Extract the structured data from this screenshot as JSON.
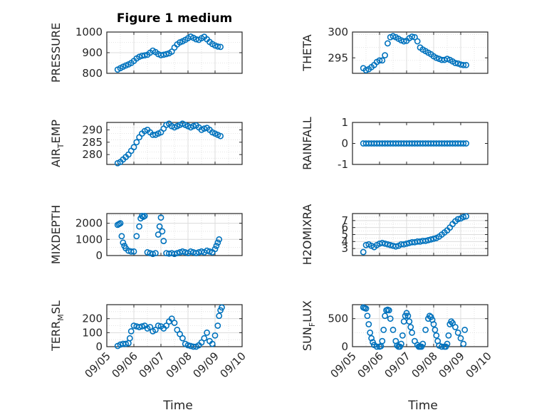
{
  "figure": {
    "title": "Figure 1 medium",
    "xlabel": "Time"
  },
  "colors": {
    "marker": "#0072bd",
    "axis": "#262626",
    "grid": "#dcdcdc"
  },
  "chart_data": [
    {
      "type": "scatter",
      "ylabel": "PRESSURE",
      "ylabel_sub": "",
      "ylabel_rest": "",
      "title": "Figure 1 medium",
      "ylim": [
        800,
        1000
      ],
      "yticks": [
        800,
        900,
        1000
      ],
      "ytick_labels": [
        "800",
        "900",
        "1000"
      ],
      "grid": true,
      "show_xticks": false,
      "x": [
        5.4,
        5.5,
        5.6,
        5.7,
        5.8,
        5.9,
        6.0,
        6.1,
        6.2,
        6.3,
        6.4,
        6.5,
        6.6,
        6.7,
        6.8,
        6.9,
        7.0,
        7.1,
        7.2,
        7.3,
        7.4,
        7.5,
        7.6,
        7.7,
        7.8,
        7.9,
        8.0,
        8.1,
        8.2,
        8.3,
        8.4,
        8.5,
        8.6,
        8.7,
        8.8,
        8.9,
        9.0,
        9.1,
        9.2
      ],
      "y": [
        818,
        825,
        832,
        838,
        843,
        850,
        860,
        872,
        880,
        885,
        887,
        890,
        900,
        910,
        903,
        893,
        888,
        890,
        893,
        897,
        905,
        925,
        940,
        950,
        955,
        962,
        970,
        978,
        972,
        965,
        962,
        970,
        977,
        965,
        952,
        942,
        935,
        930,
        928
      ]
    },
    {
      "type": "scatter",
      "ylabel": "THETA",
      "ylabel_sub": "",
      "ylabel_rest": "",
      "title": "",
      "ylim": [
        292,
        300
      ],
      "yticks": [
        295,
        300
      ],
      "ytick_labels": [
        "295",
        "300"
      ],
      "grid": true,
      "show_xticks": false,
      "x": [
        5.4,
        5.5,
        5.6,
        5.7,
        5.8,
        5.9,
        6.0,
        6.1,
        6.2,
        6.3,
        6.4,
        6.5,
        6.6,
        6.7,
        6.8,
        6.9,
        7.0,
        7.1,
        7.2,
        7.3,
        7.4,
        7.5,
        7.6,
        7.7,
        7.8,
        7.9,
        8.0,
        8.1,
        8.2,
        8.3,
        8.4,
        8.5,
        8.6,
        8.7,
        8.8,
        8.9,
        9.0,
        9.1,
        9.2
      ],
      "y": [
        293.0,
        292.6,
        292.8,
        293.2,
        293.6,
        294.2,
        294.5,
        294.5,
        295.5,
        297.8,
        299.0,
        299.2,
        299.0,
        298.7,
        298.4,
        298.2,
        298.3,
        298.8,
        299.1,
        299.0,
        298.2,
        297.0,
        296.6,
        296.3,
        296.0,
        295.7,
        295.3,
        295.0,
        294.8,
        294.6,
        294.6,
        294.8,
        294.6,
        294.3,
        294.0,
        293.9,
        293.7,
        293.6,
        293.6
      ]
    },
    {
      "type": "scatter",
      "ylabel": "AIR",
      "ylabel_sub": "T",
      "ylabel_rest": "EMP",
      "title": "",
      "ylim": [
        276,
        293
      ],
      "yticks": [
        280,
        285,
        290
      ],
      "ytick_labels": [
        "280",
        "285",
        "290"
      ],
      "grid": true,
      "show_xticks": false,
      "x": [
        5.4,
        5.5,
        5.6,
        5.7,
        5.8,
        5.9,
        6.0,
        6.1,
        6.2,
        6.3,
        6.4,
        6.5,
        6.6,
        6.7,
        6.8,
        6.9,
        7.0,
        7.1,
        7.2,
        7.3,
        7.4,
        7.5,
        7.6,
        7.7,
        7.8,
        7.9,
        8.0,
        8.1,
        8.2,
        8.3,
        8.4,
        8.5,
        8.6,
        8.7,
        8.8,
        8.9,
        9.0,
        9.1,
        9.2
      ],
      "y": [
        276.5,
        277.0,
        278.0,
        279.0,
        280.0,
        281.5,
        283.0,
        285.0,
        287.0,
        288.5,
        289.5,
        290.0,
        289.0,
        288.0,
        288.0,
        288.5,
        289.0,
        290.5,
        292.0,
        292.5,
        291.5,
        291.0,
        291.5,
        292.0,
        292.5,
        292.0,
        291.5,
        291.0,
        291.5,
        291.8,
        291.0,
        290.0,
        290.5,
        290.8,
        290.0,
        289.0,
        288.5,
        288.0,
        287.5
      ]
    },
    {
      "type": "scatter",
      "ylabel": "RAINFALL",
      "ylabel_sub": "",
      "ylabel_rest": "",
      "title": "",
      "ylim": [
        -1,
        1
      ],
      "yticks": [
        -1,
        0,
        1
      ],
      "ytick_labels": [
        "-1",
        "0",
        "1"
      ],
      "grid": false,
      "show_xticks": false,
      "x": [
        5.4,
        5.5,
        5.6,
        5.7,
        5.8,
        5.9,
        6.0,
        6.1,
        6.2,
        6.3,
        6.4,
        6.5,
        6.6,
        6.7,
        6.8,
        6.9,
        7.0,
        7.1,
        7.2,
        7.3,
        7.4,
        7.5,
        7.6,
        7.7,
        7.8,
        7.9,
        8.0,
        8.1,
        8.2,
        8.3,
        8.4,
        8.5,
        8.6,
        8.7,
        8.8,
        8.9,
        9.0,
        9.1,
        9.2
      ],
      "y": [
        0,
        0,
        0,
        0,
        0,
        0,
        0,
        0,
        0,
        0,
        0,
        0,
        0,
        0,
        0,
        0,
        0,
        0,
        0,
        0,
        0,
        0,
        0,
        0,
        0,
        0,
        0,
        0,
        0,
        0,
        0,
        0,
        0,
        0,
        0,
        0,
        0,
        0,
        0
      ]
    },
    {
      "type": "scatter",
      "ylabel": "MIXDEPTH",
      "ylabel_sub": "",
      "ylabel_rest": "",
      "title": "",
      "ylim": [
        0,
        2600
      ],
      "yticks": [
        0,
        1000,
        2000
      ],
      "ytick_labels": [
        "0",
        "1000",
        "2000"
      ],
      "grid": true,
      "show_xticks": false,
      "x": [
        5.4,
        5.45,
        5.5,
        5.55,
        5.6,
        5.65,
        5.7,
        5.8,
        5.9,
        6.0,
        6.1,
        6.2,
        6.25,
        6.3,
        6.35,
        6.4,
        6.5,
        6.6,
        6.7,
        6.8,
        6.9,
        6.95,
        7.0,
        7.05,
        7.1,
        7.2,
        7.3,
        7.4,
        7.5,
        7.6,
        7.7,
        7.8,
        7.9,
        8.0,
        8.1,
        8.2,
        8.3,
        8.4,
        8.5,
        8.6,
        8.7,
        8.8,
        8.9,
        9.0,
        9.05,
        9.1,
        9.15
      ],
      "y": [
        1900,
        1950,
        2000,
        1200,
        800,
        600,
        450,
        300,
        250,
        250,
        1200,
        1800,
        2300,
        2450,
        2400,
        2450,
        200,
        150,
        100,
        150,
        1300,
        1800,
        2350,
        1500,
        900,
        150,
        120,
        150,
        100,
        150,
        200,
        250,
        200,
        150,
        250,
        200,
        150,
        200,
        250,
        200,
        300,
        250,
        200,
        400,
        600,
        800,
        1000
      ]
    },
    {
      "type": "scatter",
      "ylabel": "H2OMIXRA",
      "ylabel_sub": "",
      "ylabel_rest": "",
      "title": "",
      "ylim": [
        2,
        8
      ],
      "yticks": [
        3,
        4,
        5,
        6,
        7
      ],
      "ytick_labels": [
        "3",
        "4",
        "5",
        "6",
        "7"
      ],
      "grid": true,
      "show_xticks": false,
      "x": [
        5.4,
        5.5,
        5.6,
        5.7,
        5.8,
        5.9,
        6.0,
        6.1,
        6.2,
        6.3,
        6.4,
        6.5,
        6.6,
        6.7,
        6.8,
        6.9,
        7.0,
        7.1,
        7.2,
        7.3,
        7.4,
        7.5,
        7.6,
        7.7,
        7.8,
        7.9,
        8.0,
        8.1,
        8.2,
        8.3,
        8.4,
        8.5,
        8.6,
        8.7,
        8.8,
        8.9,
        9.0,
        9.1,
        9.2
      ],
      "y": [
        2.5,
        3.5,
        3.6,
        3.4,
        3.2,
        3.5,
        3.7,
        3.8,
        3.7,
        3.6,
        3.5,
        3.4,
        3.3,
        3.4,
        3.6,
        3.6,
        3.7,
        3.8,
        3.9,
        3.9,
        4.0,
        4.0,
        4.1,
        4.1,
        4.2,
        4.3,
        4.4,
        4.5,
        4.7,
        5.0,
        5.3,
        5.6,
        6.0,
        6.5,
        6.9,
        7.2,
        7.3,
        7.5,
        7.6
      ]
    },
    {
      "type": "scatter",
      "ylabel": "TERR",
      "ylabel_sub": "M",
      "ylabel_rest": "SL",
      "title": "",
      "ylim": [
        0,
        300
      ],
      "yticks": [
        0,
        100,
        200
      ],
      "ytick_labels": [
        "0",
        "100",
        "200"
      ],
      "grid": true,
      "show_xticks": true,
      "xlim": [
        5,
        10
      ],
      "xticks": [
        5,
        6,
        7,
        8,
        9,
        10
      ],
      "xtick_labels": [
        "09/05",
        "09/06",
        "09/07",
        "09/08",
        "09/09",
        "09/10"
      ],
      "x": [
        5.4,
        5.5,
        5.6,
        5.7,
        5.8,
        5.85,
        5.9,
        6.0,
        6.1,
        6.2,
        6.3,
        6.4,
        6.5,
        6.6,
        6.7,
        6.8,
        6.9,
        7.0,
        7.1,
        7.2,
        7.3,
        7.4,
        7.5,
        7.6,
        7.7,
        7.8,
        7.9,
        8.0,
        8.1,
        8.2,
        8.3,
        8.4,
        8.5,
        8.6,
        8.7,
        8.8,
        8.9,
        9.0,
        9.1,
        9.15,
        9.2,
        9.25
      ],
      "y": [
        5,
        15,
        20,
        20,
        25,
        60,
        110,
        150,
        145,
        140,
        145,
        150,
        130,
        140,
        110,
        120,
        150,
        145,
        130,
        150,
        180,
        200,
        170,
        120,
        90,
        60,
        20,
        10,
        5,
        0,
        0,
        10,
        30,
        60,
        100,
        40,
        20,
        80,
        150,
        220,
        260,
        280
      ]
    },
    {
      "type": "scatter",
      "ylabel": "SUN",
      "ylabel_sub": "F",
      "ylabel_rest": "LUX",
      "title": "",
      "ylim": [
        0,
        750
      ],
      "yticks": [
        0,
        500
      ],
      "ytick_labels": [
        "0",
        "500"
      ],
      "grid": true,
      "show_xticks": true,
      "xlim": [
        5,
        10
      ],
      "xticks": [
        5,
        6,
        7,
        8,
        9,
        10
      ],
      "xtick_labels": [
        "09/05",
        "09/06",
        "09/07",
        "09/08",
        "09/09",
        "09/10"
      ],
      "x": [
        5.4,
        5.45,
        5.5,
        5.55,
        5.6,
        5.65,
        5.7,
        5.75,
        5.8,
        5.9,
        6.0,
        6.05,
        6.1,
        6.15,
        6.2,
        6.25,
        6.3,
        6.35,
        6.4,
        6.5,
        6.6,
        6.65,
        6.7,
        6.75,
        6.8,
        6.85,
        6.9,
        6.95,
        7.0,
        7.05,
        7.1,
        7.15,
        7.2,
        7.3,
        7.4,
        7.45,
        7.5,
        7.55,
        7.6,
        7.7,
        7.8,
        7.85,
        7.9,
        7.95,
        8.0,
        8.05,
        8.1,
        8.15,
        8.2,
        8.3,
        8.4,
        8.45,
        8.5,
        8.55,
        8.6,
        8.65,
        8.7,
        8.8,
        8.9,
        9.0,
        9.1,
        9.15
      ],
      "y": [
        700,
        690,
        680,
        550,
        400,
        250,
        150,
        80,
        30,
        0,
        0,
        10,
        100,
        300,
        550,
        650,
        660,
        650,
        500,
        300,
        100,
        20,
        0,
        0,
        50,
        200,
        450,
        550,
        600,
        550,
        450,
        350,
        250,
        100,
        30,
        0,
        0,
        0,
        50,
        300,
        500,
        550,
        530,
        480,
        400,
        300,
        200,
        100,
        20,
        0,
        0,
        0,
        50,
        200,
        400,
        450,
        420,
        350,
        250,
        150,
        50,
        300
      ]
    }
  ]
}
